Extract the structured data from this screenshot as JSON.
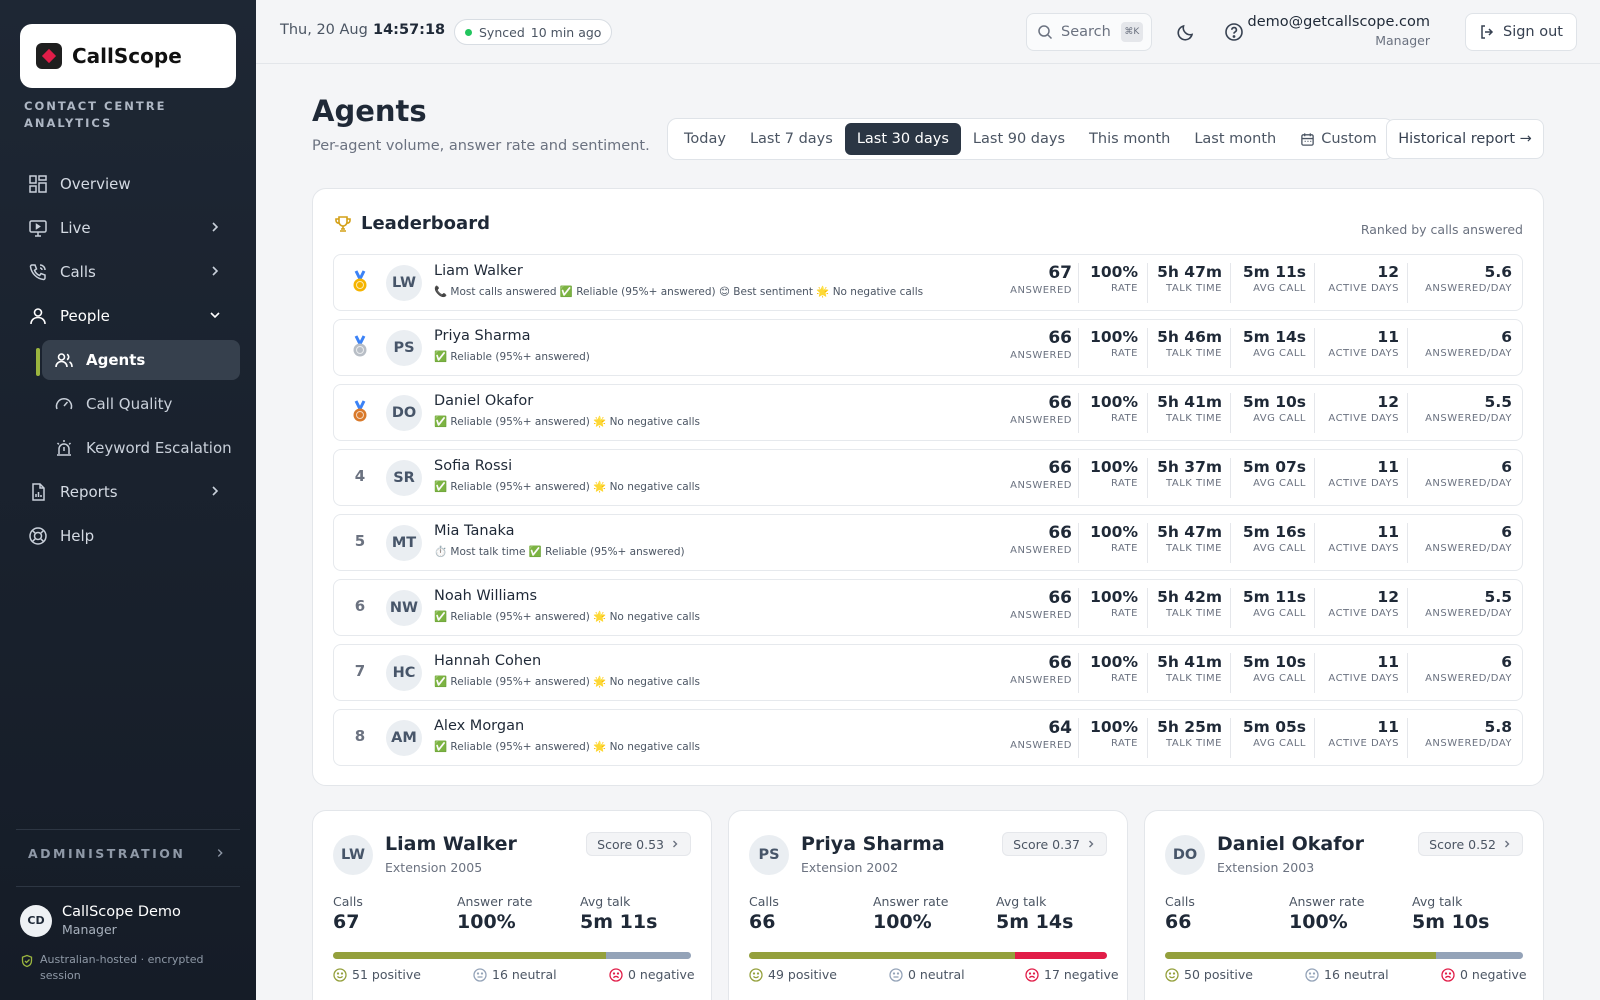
{
  "app": {
    "name": "CallScope",
    "tagline": "CONTACT CENTRE ANALYTICS"
  },
  "sidebar": {
    "items": [
      {
        "label": "Overview",
        "icon": "grid-icon"
      },
      {
        "label": "Live",
        "icon": "monitor-icon"
      },
      {
        "label": "Calls",
        "icon": "phone-icon"
      },
      {
        "label": "People",
        "icon": "users-icon"
      },
      {
        "label": "Agents",
        "icon": "users-icon"
      },
      {
        "label": "Call Quality",
        "icon": "gauge-icon"
      },
      {
        "label": "Keyword Escalation",
        "icon": "alarm-icon"
      },
      {
        "label": "Reports",
        "icon": "report-icon"
      },
      {
        "label": "Help",
        "icon": "lifebuoy-icon"
      }
    ],
    "admin_label": "ADMINISTRATION",
    "user": {
      "initials": "CD",
      "name": "CallScope Demo",
      "role": "Manager"
    },
    "secure_note": "Australian-hosted · encrypted session"
  },
  "topbar": {
    "date": "Thu, 20 Aug",
    "time": "14:57:18",
    "sync_label": "Synced",
    "sync_ago": "10 min ago",
    "search_label": "Search",
    "search_kbd": "⌘K",
    "email": "demo@getcallscope.com",
    "role": "Manager",
    "signout": "Sign out"
  },
  "page": {
    "title": "Agents",
    "subtitle": "Per-agent volume, answer rate and sentiment.",
    "ranges": [
      "Today",
      "Last 7 days",
      "Last 30 days",
      "Last 90 days",
      "This month",
      "Last month",
      "Custom"
    ],
    "selected_range": "Last 30 days",
    "historical_button": "Historical report →"
  },
  "leaderboard": {
    "title": "Leaderboard",
    "note": "Ranked by calls answered",
    "labels": {
      "answered": "ANSWERED",
      "rate": "RATE",
      "talk": "TALK TIME",
      "avg": "AVG CALL",
      "days": "ACTIVE DAYS",
      "perday": "ANSWERED/DAY"
    },
    "rows": [
      {
        "rank": "1",
        "medal": "gold",
        "initials": "LW",
        "name": "Liam Walker",
        "badges": "📞 Most calls answered ✅ Reliable (95%+ answered) 😊 Best sentiment 🌟 No negative calls",
        "answered": "67",
        "rate": "100%",
        "talk": "5h 47m",
        "avg": "5m 11s",
        "days": "12",
        "perday": "5.6"
      },
      {
        "rank": "2",
        "medal": "silver",
        "initials": "PS",
        "name": "Priya Sharma",
        "badges": "✅ Reliable (95%+ answered)",
        "answered": "66",
        "rate": "100%",
        "talk": "5h 46m",
        "avg": "5m 14s",
        "days": "11",
        "perday": "6"
      },
      {
        "rank": "3",
        "medal": "bronze",
        "initials": "DO",
        "name": "Daniel Okafor",
        "badges": "✅ Reliable (95%+ answered) 🌟 No negative calls",
        "answered": "66",
        "rate": "100%",
        "talk": "5h 41m",
        "avg": "5m 10s",
        "days": "12",
        "perday": "5.5"
      },
      {
        "rank": "4",
        "medal": "",
        "initials": "SR",
        "name": "Sofia Rossi",
        "badges": "✅ Reliable (95%+ answered) 🌟 No negative calls",
        "answered": "66",
        "rate": "100%",
        "talk": "5h 37m",
        "avg": "5m 07s",
        "days": "11",
        "perday": "6"
      },
      {
        "rank": "5",
        "medal": "",
        "initials": "MT",
        "name": "Mia Tanaka",
        "badges": "⏱️ Most talk time ✅ Reliable (95%+ answered)",
        "answered": "66",
        "rate": "100%",
        "talk": "5h 47m",
        "avg": "5m 16s",
        "days": "11",
        "perday": "6"
      },
      {
        "rank": "6",
        "medal": "",
        "initials": "NW",
        "name": "Noah Williams",
        "badges": "✅ Reliable (95%+ answered) 🌟 No negative calls",
        "answered": "66",
        "rate": "100%",
        "talk": "5h 42m",
        "avg": "5m 11s",
        "days": "12",
        "perday": "5.5"
      },
      {
        "rank": "7",
        "medal": "",
        "initials": "HC",
        "name": "Hannah Cohen",
        "badges": "✅ Reliable (95%+ answered) 🌟 No negative calls",
        "answered": "66",
        "rate": "100%",
        "talk": "5h 41m",
        "avg": "5m 10s",
        "days": "11",
        "perday": "6"
      },
      {
        "rank": "8",
        "medal": "",
        "initials": "AM",
        "name": "Alex Morgan",
        "badges": "✅ Reliable (95%+ answered) 🌟 No negative calls",
        "answered": "64",
        "rate": "100%",
        "talk": "5h 25m",
        "avg": "5m 05s",
        "days": "11",
        "perday": "5.8"
      }
    ]
  },
  "cards": [
    {
      "initials": "LW",
      "name": "Liam Walker",
      "ext": "Extension 2005",
      "score": "Score 0.53",
      "calls_label": "Calls",
      "calls": "67",
      "rate_label": "Answer rate",
      "rate": "100%",
      "talk_label": "Avg talk",
      "talk": "5m 11s",
      "positive": "51 positive",
      "neutral": "16 neutral",
      "negative": "0 negative",
      "pos_n": 51,
      "neu_n": 16,
      "neg_n": 0
    },
    {
      "initials": "PS",
      "name": "Priya Sharma",
      "ext": "Extension 2002",
      "score": "Score 0.37",
      "calls_label": "Calls",
      "calls": "66",
      "rate_label": "Answer rate",
      "rate": "100%",
      "talk_label": "Avg talk",
      "talk": "5m 14s",
      "positive": "49 positive",
      "neutral": "0 neutral",
      "negative": "17 negative",
      "pos_n": 49,
      "neu_n": 0,
      "neg_n": 17
    },
    {
      "initials": "DO",
      "name": "Daniel Okafor",
      "ext": "Extension 2003",
      "score": "Score 0.52",
      "calls_label": "Calls",
      "calls": "66",
      "rate_label": "Answer rate",
      "rate": "100%",
      "talk_label": "Avg talk",
      "talk": "5m 10s",
      "positive": "50 positive",
      "neutral": "16 neutral",
      "negative": "0 negative",
      "pos_n": 50,
      "neu_n": 16,
      "neg_n": 0
    }
  ],
  "colors": {
    "accent": "#9bb53f",
    "positive": "#94a03c",
    "neutral": "#94a3b8",
    "negative": "#e11d48",
    "sidebar": "#1e2734"
  }
}
